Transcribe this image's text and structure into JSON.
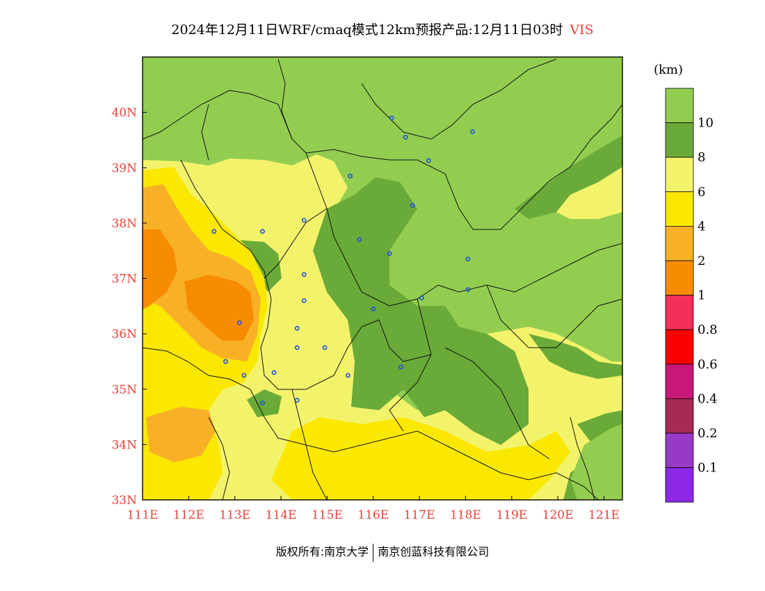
{
  "title": {
    "main": "2024年12月11日WRF/cmaq模式12km预报产品:12月11日03时",
    "variable": "VIS"
  },
  "map": {
    "lon_range": [
      111,
      121.4
    ],
    "lat_range": [
      33,
      41
    ],
    "lon_ticks": [
      "111E",
      "112E",
      "113E",
      "114E",
      "115E",
      "116E",
      "117E",
      "118E",
      "119E",
      "120E",
      "121E"
    ],
    "lat_ticks": [
      "33N",
      "34N",
      "35N",
      "36N",
      "37N",
      "38N",
      "39N",
      "40N"
    ],
    "stations": [
      [
        116.4,
        39.9
      ],
      [
        116.7,
        39.55
      ],
      [
        117.2,
        39.13
      ],
      [
        118.15,
        39.65
      ],
      [
        115.5,
        38.85
      ],
      [
        116.85,
        38.32
      ],
      [
        112.55,
        37.85
      ],
      [
        113.6,
        37.85
      ],
      [
        114.5,
        38.05
      ],
      [
        115.7,
        37.7
      ],
      [
        116.35,
        37.45
      ],
      [
        114.5,
        37.07
      ],
      [
        114.5,
        36.6
      ],
      [
        118.05,
        37.35
      ],
      [
        118.05,
        36.8
      ],
      [
        117.05,
        36.65
      ],
      [
        116.0,
        36.45
      ],
      [
        113.1,
        36.2
      ],
      [
        114.35,
        36.1
      ],
      [
        114.35,
        35.75
      ],
      [
        114.95,
        35.75
      ],
      [
        112.8,
        35.5
      ],
      [
        113.2,
        35.25
      ],
      [
        113.85,
        35.3
      ],
      [
        115.45,
        35.25
      ],
      [
        116.6,
        35.4
      ],
      [
        114.35,
        34.8
      ],
      [
        113.6,
        34.75
      ]
    ],
    "colors": {
      "gt10": "#92cd50",
      "8to10": "#6aaa38",
      "6to8": "#f3f36b",
      "4to6": "#fae800",
      "2to4": "#f8b126",
      "1to2": "#f88c00"
    }
  },
  "colorbar": {
    "units": "(km)",
    "levels": [
      "10",
      "8",
      "6",
      "4",
      "2",
      "1",
      "0.8",
      "0.6",
      "0.4",
      "0.2",
      "0.1"
    ],
    "colors": [
      "#92cd50",
      "#6aaa38",
      "#f3f36b",
      "#fae800",
      "#f8b126",
      "#f88c00",
      "#f32f5a",
      "#fa0000",
      "#c8187a",
      "#a62a55",
      "#983ac8",
      "#8c28e6"
    ]
  },
  "credit": {
    "left": "版权所有:南京大学",
    "right": "南京创蓝科技有限公司"
  }
}
